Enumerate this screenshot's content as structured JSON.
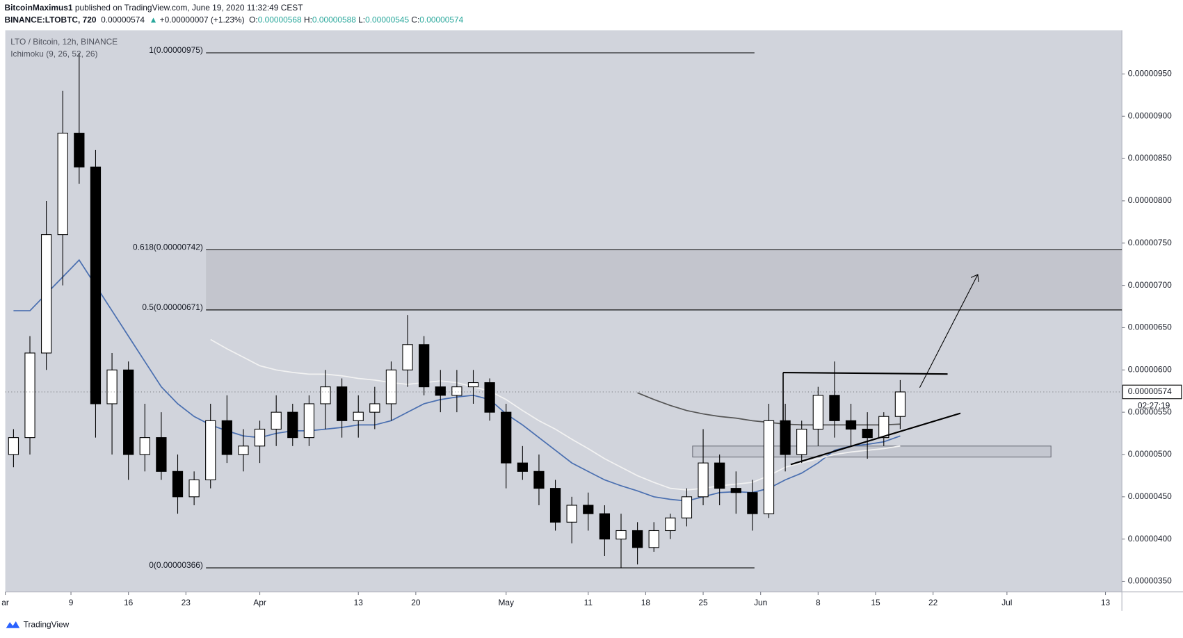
{
  "header": {
    "author": "BitcoinMaximus1",
    "published": " published on TradingView.com, June 19, 2020 11:32:49 CEST",
    "symbol": "BINANCE:LTOBTC, 720",
    "last": "0.00000574",
    "arrow": "▲",
    "change": "+0.00000007 (+1.23%)",
    "ohlc": [
      {
        "label": "O:",
        "value": "0.00000568"
      },
      {
        "label": "H:",
        "value": "0.00000588"
      },
      {
        "label": "L:",
        "value": "0.00000545"
      },
      {
        "label": "C:",
        "value": "0.00000574"
      }
    ]
  },
  "chart_data": {
    "type": "candlestick",
    "title": "LTO / Bitcoin, 12h, BINANCE",
    "subtitle": "Ichimoku (9, 26, 52, 26)",
    "x": [
      "03-02",
      "03-04",
      "03-06",
      "03-08",
      "03-10",
      "03-12",
      "03-14",
      "03-16",
      "03-18",
      "03-20",
      "03-22",
      "03-24",
      "03-26",
      "03-28",
      "03-30",
      "04-01",
      "04-03",
      "04-05",
      "04-07",
      "04-09",
      "04-11",
      "04-13",
      "04-15",
      "04-17",
      "04-19",
      "04-21",
      "04-23",
      "04-25",
      "04-27",
      "04-29",
      "05-01",
      "05-03",
      "05-05",
      "05-07",
      "05-09",
      "05-11",
      "05-13",
      "05-15",
      "05-17",
      "05-19",
      "05-21",
      "05-23",
      "05-25",
      "05-27",
      "05-29",
      "05-31",
      "06-02",
      "06-04",
      "06-06",
      "06-08",
      "06-10",
      "06-12",
      "06-14",
      "06-16",
      "06-18"
    ],
    "open": [
      5e-06,
      5.2e-06,
      6.2e-06,
      7.6e-06,
      8.8e-06,
      8.4e-06,
      5.6e-06,
      6e-06,
      5e-06,
      5.2e-06,
      4.8e-06,
      4.5e-06,
      4.7e-06,
      5.4e-06,
      5e-06,
      5.1e-06,
      5.3e-06,
      5.5e-06,
      5.2e-06,
      5.6e-06,
      5.8e-06,
      5.4e-06,
      5.5e-06,
      5.6e-06,
      6e-06,
      6.3e-06,
      5.8e-06,
      5.7e-06,
      5.8e-06,
      5.85e-06,
      5.5e-06,
      4.9e-06,
      4.8e-06,
      4.6e-06,
      4.2e-06,
      4.4e-06,
      4.3e-06,
      4e-06,
      4.1e-06,
      3.9e-06,
      4.1e-06,
      4.25e-06,
      4.5e-06,
      4.9e-06,
      4.6e-06,
      4.55e-06,
      4.3e-06,
      5.4e-06,
      5e-06,
      5.3e-06,
      5.7e-06,
      5.4e-06,
      5.3e-06,
      5.2e-06,
      5.45e-06
    ],
    "high": [
      5.3e-06,
      6.4e-06,
      8e-06,
      9.3e-06,
      9.75e-06,
      8.6e-06,
      6.2e-06,
      6.1e-06,
      5.6e-06,
      5.5e-06,
      5e-06,
      4.8e-06,
      5.6e-06,
      5.7e-06,
      5.3e-06,
      5.4e-06,
      5.7e-06,
      5.6e-06,
      5.7e-06,
      6e-06,
      5.9e-06,
      5.7e-06,
      5.8e-06,
      6.1e-06,
      6.65e-06,
      6.4e-06,
      6e-06,
      6e-06,
      6e-06,
      5.9e-06,
      5.6e-06,
      5.1e-06,
      5e-06,
      4.7e-06,
      4.5e-06,
      4.55e-06,
      4.4e-06,
      4.3e-06,
      4.2e-06,
      4.2e-06,
      4.3e-06,
      4.6e-06,
      5.3e-06,
      5e-06,
      4.8e-06,
      4.7e-06,
      5.6e-06,
      5.6e-06,
      5.4e-06,
      5.8e-06,
      6.1e-06,
      5.6e-06,
      5.5e-06,
      5.5e-06,
      5.88e-06
    ],
    "low": [
      4.85e-06,
      5e-06,
      6e-06,
      7e-06,
      8.2e-06,
      5.2e-06,
      5e-06,
      4.7e-06,
      4.8e-06,
      4.7e-06,
      4.3e-06,
      4.4e-06,
      4.6e-06,
      4.9e-06,
      4.8e-06,
      4.9e-06,
      5.1e-06,
      5.1e-06,
      5.1e-06,
      5.3e-06,
      5.2e-06,
      5.2e-06,
      5.3e-06,
      5.4e-06,
      5.8e-06,
      5.7e-06,
      5.5e-06,
      5.5e-06,
      5.6e-06,
      5.4e-06,
      4.6e-06,
      4.7e-06,
      4.4e-06,
      4.1e-06,
      3.95e-06,
      4.1e-06,
      3.8e-06,
      3.66e-06,
      3.7e-06,
      3.85e-06,
      4e-06,
      4.15e-06,
      4.4e-06,
      4.4e-06,
      4.3e-06,
      4.1e-06,
      4.25e-06,
      4.8e-06,
      4.9e-06,
      5.1e-06,
      5.2e-06,
      5.1e-06,
      4.95e-06,
      5.1e-06,
      5.3e-06
    ],
    "close": [
      5.2e-06,
      6.2e-06,
      7.6e-06,
      8.8e-06,
      8.4e-06,
      5.6e-06,
      6e-06,
      5e-06,
      5.2e-06,
      4.8e-06,
      4.5e-06,
      4.7e-06,
      5.4e-06,
      5e-06,
      5.1e-06,
      5.3e-06,
      5.5e-06,
      5.2e-06,
      5.6e-06,
      5.8e-06,
      5.4e-06,
      5.5e-06,
      5.6e-06,
      6e-06,
      6.3e-06,
      5.8e-06,
      5.7e-06,
      5.8e-06,
      5.85e-06,
      5.5e-06,
      4.9e-06,
      4.8e-06,
      4.6e-06,
      4.2e-06,
      4.4e-06,
      4.3e-06,
      4e-06,
      4.1e-06,
      3.9e-06,
      4.1e-06,
      4.25e-06,
      4.5e-06,
      4.9e-06,
      4.6e-06,
      4.55e-06,
      4.3e-06,
      5.4e-06,
      5e-06,
      5.3e-06,
      5.7e-06,
      5.4e-06,
      5.3e-06,
      5.2e-06,
      5.45e-06,
      5.74e-06
    ],
    "up_color": "#ffffff",
    "down_color": "#000000",
    "lines": [
      {
        "color": "#4a6fb0",
        "values": [
          6.7e-06,
          6.7e-06,
          6.9e-06,
          7.1e-06,
          7.3e-06,
          7e-06,
          6.7e-06,
          6.4e-06,
          6.1e-06,
          5.8e-06,
          5.6e-06,
          5.45e-06,
          5.35e-06,
          5.28e-06,
          5.22e-06,
          5.2e-06,
          5.25e-06,
          5.28e-06,
          5.28e-06,
          5.3e-06,
          5.32e-06,
          5.35e-06,
          5.35e-06,
          5.4e-06,
          5.5e-06,
          5.6e-06,
          5.65e-06,
          5.68e-06,
          5.7e-06,
          5.65e-06,
          5.48e-06,
          5.35e-06,
          5.2e-06,
          5.05e-06,
          4.9e-06,
          4.8e-06,
          4.7e-06,
          4.63e-06,
          4.57e-06,
          4.5e-06,
          4.47e-06,
          4.45e-06,
          4.5e-06,
          4.55e-06,
          4.56e-06,
          4.55e-06,
          4.6e-06,
          4.7e-06,
          4.78e-06,
          4.9e-06,
          5.05e-06,
          5.1e-06,
          5.12e-06,
          5.15e-06,
          5.22e-06
        ]
      },
      {
        "color": "#f2f2f2",
        "values": [
          null,
          null,
          null,
          null,
          null,
          null,
          null,
          null,
          null,
          null,
          null,
          null,
          6.36e-06,
          6.25e-06,
          6.15e-06,
          6.05e-06,
          6e-06,
          5.97e-06,
          5.95e-06,
          5.95e-06,
          5.93e-06,
          5.9e-06,
          5.88e-06,
          5.85e-06,
          5.83e-06,
          5.85e-06,
          5.87e-06,
          5.85e-06,
          5.8e-06,
          5.75e-06,
          5.65e-06,
          5.52e-06,
          5.4e-06,
          5.3e-06,
          5.18e-06,
          5.07e-06,
          4.95e-06,
          4.85e-06,
          4.75e-06,
          4.67e-06,
          4.6e-06,
          4.58e-06,
          4.6e-06,
          4.63e-06,
          4.65e-06,
          4.67e-06,
          4.75e-06,
          4.85e-06,
          4.9e-06,
          4.95e-06,
          5e-06,
          5.03e-06,
          5.05e-06,
          5.07e-06,
          5.1e-06
        ]
      },
      {
        "color": "#555555",
        "values": [
          null,
          null,
          null,
          null,
          null,
          null,
          null,
          null,
          null,
          null,
          null,
          null,
          null,
          null,
          null,
          null,
          null,
          null,
          null,
          null,
          null,
          null,
          null,
          null,
          null,
          null,
          null,
          null,
          null,
          null,
          null,
          null,
          null,
          null,
          null,
          null,
          null,
          null,
          5.73e-06,
          5.65e-06,
          5.58e-06,
          5.52e-06,
          5.48e-06,
          5.45e-06,
          5.43e-06,
          5.4e-06,
          5.38e-06,
          5.36e-06,
          5.35e-06,
          5.35e-06,
          5.35e-06,
          5.35e-06,
          5.35e-06,
          5.35e-06,
          5.36e-06
        ]
      }
    ],
    "fib_levels": [
      {
        "label": "1(0.00000975)",
        "value": 9.75e-06
      },
      {
        "label": "0.618(0.00000742)",
        "value": 7.42e-06
      },
      {
        "label": "0.5(0.00000671)",
        "value": 6.71e-06
      },
      {
        "label": "0(0.00000366)",
        "value": 3.66e-06
      }
    ],
    "zone": {
      "low": 4.97e-06,
      "high": 5.1e-06
    },
    "ylim": [
      3.375e-06,
      1.0017e-05
    ],
    "yticks": [
      {
        "value": 3.5e-06,
        "label": "0.00000350"
      },
      {
        "value": 4e-06,
        "label": "0.00000400"
      },
      {
        "value": 4.5e-06,
        "label": "0.00000450"
      },
      {
        "value": 5e-06,
        "label": "0.00000500"
      },
      {
        "value": 5.5e-06,
        "label": "0.00000550"
      },
      {
        "value": 6e-06,
        "label": "0.00000600"
      },
      {
        "value": 6.5e-06,
        "label": "0.00000650"
      },
      {
        "value": 7e-06,
        "label": "0.00000700"
      },
      {
        "value": 7.5e-06,
        "label": "0.00000750"
      },
      {
        "value": 8e-06,
        "label": "0.00000800"
      },
      {
        "value": 8.5e-06,
        "label": "0.00000850"
      },
      {
        "value": 9e-06,
        "label": "0.00000900"
      },
      {
        "value": 9.5e-06,
        "label": "0.00000950"
      }
    ],
    "xlim": [
      "03-01",
      "07-15"
    ],
    "xticks": [
      {
        "value": "03-01",
        "label": "ar"
      },
      {
        "value": "03-09",
        "label": "9"
      },
      {
        "value": "03-16",
        "label": "16"
      },
      {
        "value": "03-23",
        "label": "23"
      },
      {
        "value": "04-01",
        "label": "Apr"
      },
      {
        "value": "04-13",
        "label": "13"
      },
      {
        "value": "04-20",
        "label": "20"
      },
      {
        "value": "05-01",
        "label": "May"
      },
      {
        "value": "05-11",
        "label": "11"
      },
      {
        "value": "05-18",
        "label": "18"
      },
      {
        "value": "05-25",
        "label": "25"
      },
      {
        "value": "06-01",
        "label": "Jun"
      },
      {
        "value": "06-08",
        "label": "8"
      },
      {
        "value": "06-15",
        "label": "15"
      },
      {
        "value": "06-22",
        "label": "22"
      },
      {
        "value": "07-01",
        "label": "Jul"
      },
      {
        "value": "07-13",
        "label": "13"
      }
    ],
    "last_price": {
      "value": 5.74e-06,
      "label": "0.00000574"
    },
    "countdown": "02:27:19"
  },
  "footer": {
    "brand": "TradingView"
  }
}
